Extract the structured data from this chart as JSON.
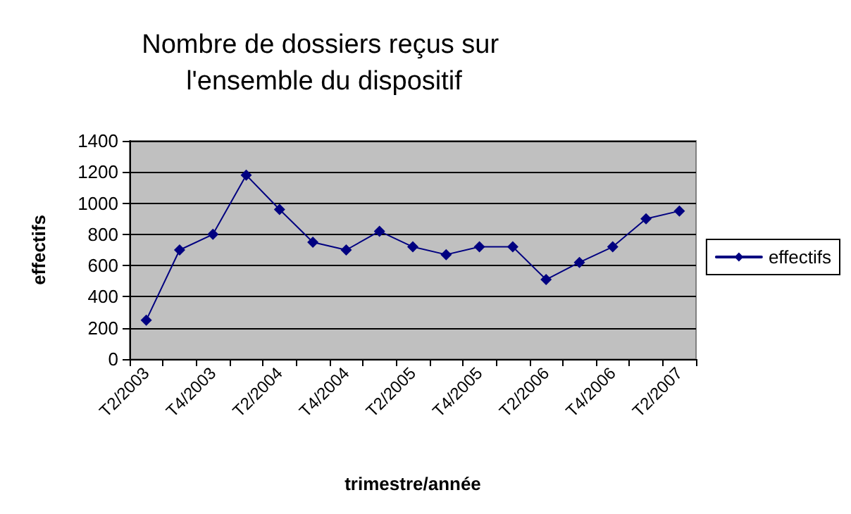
{
  "chart_data": {
    "type": "line",
    "title": "Nombre de dossiers reçus sur l'ensemble du dispositif",
    "xlabel": "trimestre/année",
    "ylabel": "effectifs",
    "categories": [
      "T2/2003",
      null,
      "T4/2003",
      null,
      "T2/2004",
      null,
      "T4/2004",
      null,
      "T2/2005",
      null,
      "T4/2005",
      null,
      "T2/2006",
      null,
      "T4/2006",
      null,
      "T2/2007"
    ],
    "series": [
      {
        "name": "effectifs",
        "color": "#000080",
        "values": [
          250,
          700,
          800,
          1180,
          960,
          750,
          700,
          820,
          720,
          670,
          720,
          720,
          510,
          620,
          720,
          900,
          950
        ]
      }
    ],
    "ylim": [
      0,
      1400
    ],
    "yticks": [
      0,
      200,
      400,
      600,
      800,
      1000,
      1200,
      1400
    ],
    "grid": "y",
    "legend": "right",
    "marker": "diamond",
    "line_style": "solid"
  }
}
